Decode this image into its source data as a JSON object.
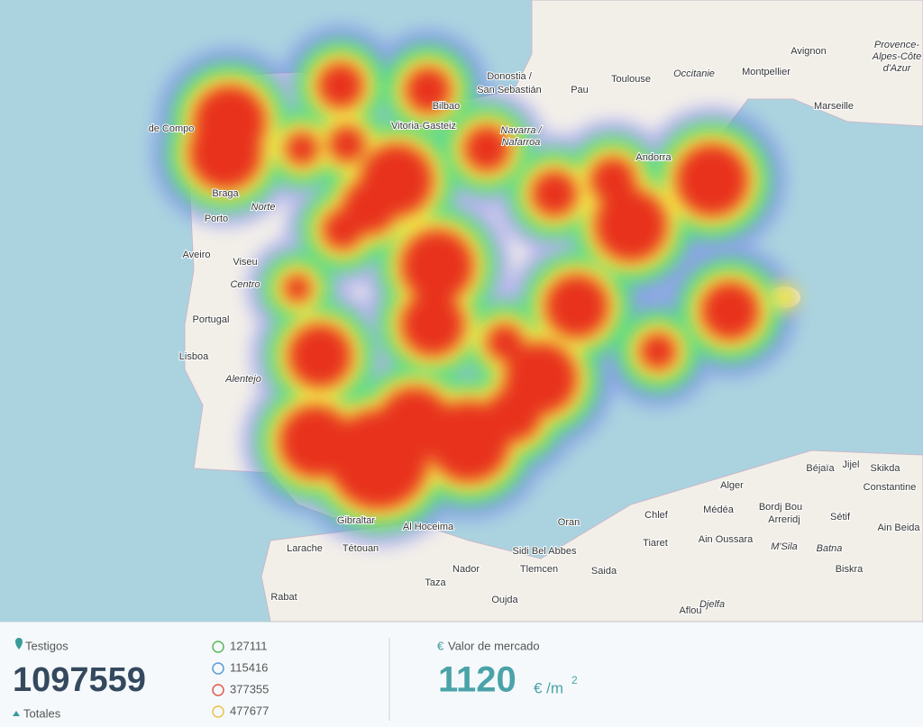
{
  "map": {
    "labels": [
      "Donostia /",
      "San Sebastián",
      "Pau",
      "Toulouse",
      "Occitanie",
      "Avignon",
      "Montpellier",
      "Provence-",
      "Alpes-Côte",
      "d'Azur",
      "Marseille",
      "Bilbao",
      "Vitoria-Gasteiz",
      "Navarra /",
      "Nafarroa",
      "Andorra",
      "Braga",
      "Porto",
      "Norte",
      "Aveiro",
      "Viseu",
      "Centro",
      "Portugal",
      "Lisboa",
      "Alentejo",
      "de Compo",
      "Gibraltar",
      "Al Hoceima",
      "Larache",
      "Tétouan",
      "Nador",
      "Oujda",
      "Taza",
      "Rabat",
      "Tlemcen",
      "Sidi Bel Abbes",
      "Oran",
      "Saida",
      "Tiaret",
      "Chlef",
      "Médéa",
      "Alger",
      "Bordj Bou",
      "Arreridj",
      "Sétif",
      "Béjaïa",
      "Jijel",
      "Skikda",
      "Constantine",
      "Ain Beida",
      "Batna",
      "M'Sila",
      "Biskra",
      "Djelfa",
      "Aflou",
      "Ain Oussara"
    ]
  },
  "stats": {
    "testigos_label": "Testigos",
    "total": 1097559,
    "total_caption": "Totales",
    "breakdown": [
      127111,
      115416,
      377355,
      477677
    ],
    "market_icon": "€",
    "market_label": "Valor de mercado",
    "market_value": 1120,
    "unit": "€ /m",
    "unit_power": "2"
  }
}
